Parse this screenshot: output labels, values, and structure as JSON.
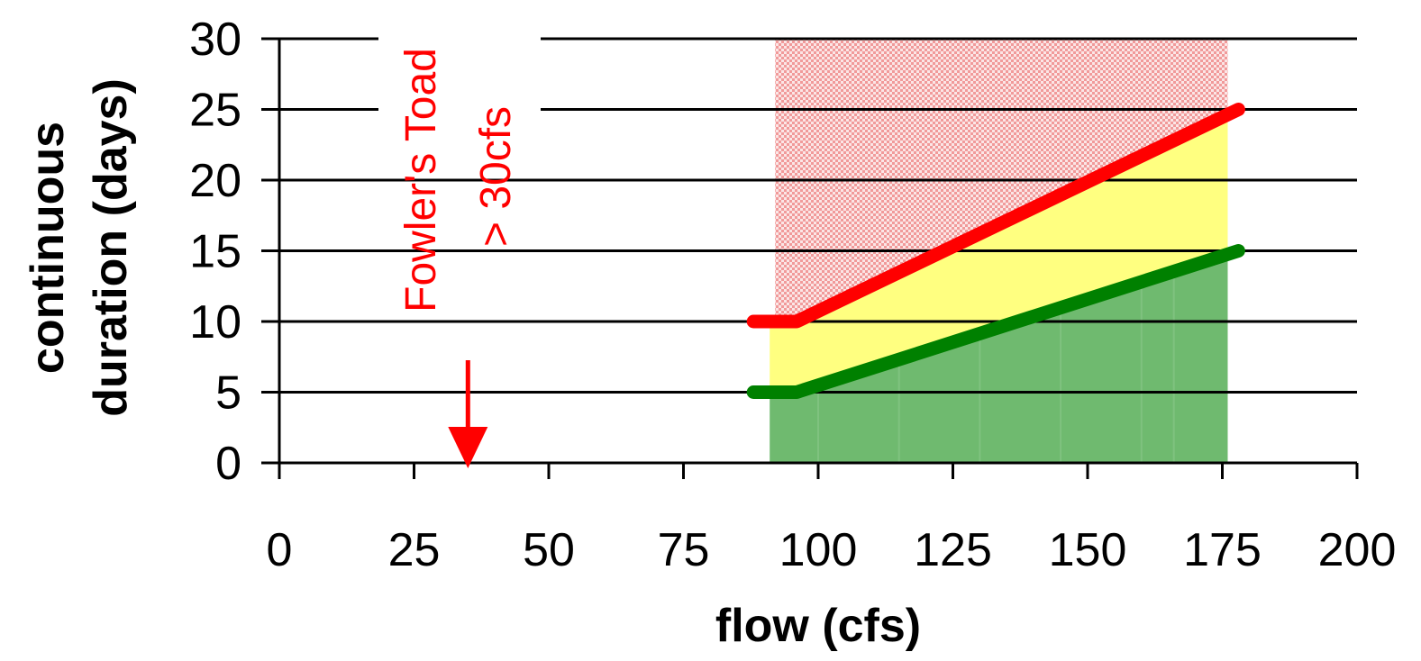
{
  "chart_data": {
    "type": "area",
    "xlabel": "flow (cfs)",
    "ylabel_line1": "continuous",
    "ylabel_line2": "duration (days)",
    "xlim": [
      0,
      200
    ],
    "ylim": [
      0,
      30
    ],
    "x_ticks": [
      "0",
      "25",
      "50",
      "75",
      "100",
      "125",
      "150",
      "175",
      "200"
    ],
    "y_ticks": [
      "0",
      "5",
      "10",
      "15",
      "20",
      "25",
      "30"
    ],
    "grid": true,
    "series": [
      {
        "x": [
          88,
          96,
          178
        ],
        "y": [
          10,
          10,
          25
        ],
        "color": "#ff0000"
      },
      {
        "x": [
          88,
          96,
          178
        ],
        "y": [
          5,
          5,
          15
        ],
        "color": "#008000"
      }
    ],
    "bands": [
      {
        "x0": 91,
        "x1": 176,
        "from": "floor",
        "to": "series.1",
        "color": "#6fba6f"
      },
      {
        "x0": 91,
        "x1": 176,
        "from": "series.1",
        "to": "series.0",
        "color": "#ffff80"
      },
      {
        "x0": 92,
        "x1": 176,
        "from": "series.0",
        "to": "top",
        "color": "#f4b4b4",
        "hatched": true
      }
    ],
    "annotation": {
      "line1": "Fowler's Toad",
      "line2": "> 30cfs",
      "x": 35,
      "color": "#ff0000"
    }
  }
}
